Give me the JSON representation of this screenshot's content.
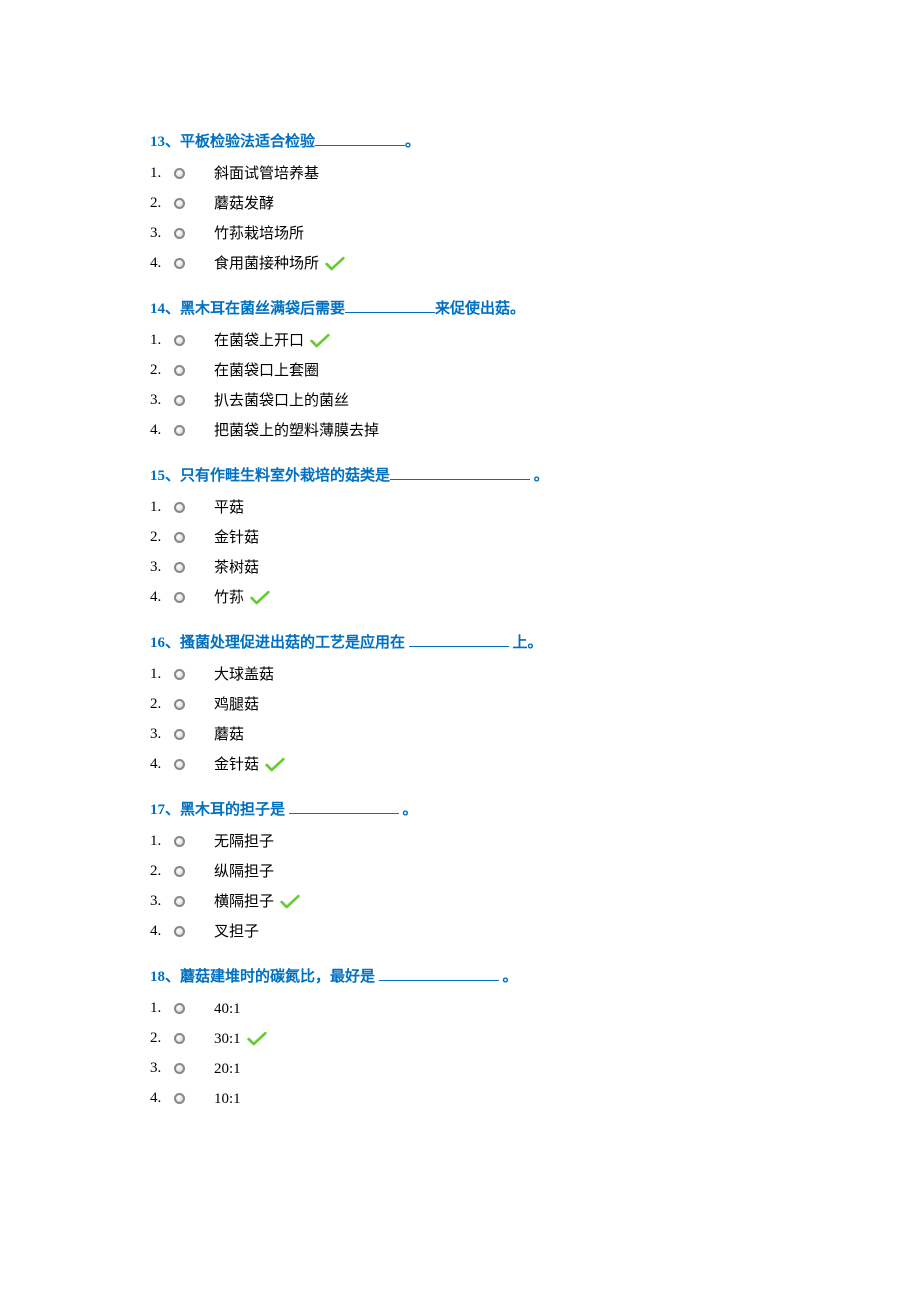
{
  "colors": {
    "title_color": "#0070c0",
    "check_color": "#66cc33",
    "text_color": "#000000"
  },
  "questions": [
    {
      "number": "13",
      "title_prefix": "13、平板检验法适合检验",
      "title_suffix": "。",
      "blank_width": 90,
      "options": [
        {
          "num": "1.",
          "text": "斜面试管培养基",
          "correct": false
        },
        {
          "num": "2.",
          "text": "蘑菇发酵",
          "correct": false
        },
        {
          "num": "3.",
          "text": "竹荪栽培场所",
          "correct": false
        },
        {
          "num": "4.",
          "text": "食用菌接种场所",
          "correct": true
        }
      ]
    },
    {
      "number": "14",
      "title_prefix": "14、黑木耳在菌丝满袋后需要",
      "title_suffix": "来促使出菇。",
      "blank_width": 90,
      "options": [
        {
          "num": "1.",
          "text": "在菌袋上开口",
          "correct": true
        },
        {
          "num": "2.",
          "text": "在菌袋口上套圈",
          "correct": false
        },
        {
          "num": "3.",
          "text": "扒去菌袋口上的菌丝",
          "correct": false
        },
        {
          "num": "4.",
          "text": "把菌袋上的塑料薄膜去掉",
          "correct": false
        }
      ]
    },
    {
      "number": "15",
      "title_prefix": "15、只有作畦生料室外栽培的菇类是",
      "title_suffix": "  。",
      "blank_width": 140,
      "options": [
        {
          "num": "1.",
          "text": "平菇",
          "correct": false
        },
        {
          "num": "2.",
          "text": "金针菇",
          "correct": false
        },
        {
          "num": "3.",
          "text": "茶树菇",
          "correct": false
        },
        {
          "num": "4.",
          "text": "竹荪",
          "correct": true
        }
      ]
    },
    {
      "number": "16",
      "title_prefix": "16、搔菌处理促进出菇的工艺是应用在  ",
      "title_suffix": "  上。",
      "blank_width": 100,
      "options": [
        {
          "num": "1.",
          "text": "大球盖菇",
          "correct": false
        },
        {
          "num": "2.",
          "text": "鸡腿菇",
          "correct": false
        },
        {
          "num": "3.",
          "text": "蘑菇",
          "correct": false
        },
        {
          "num": "4.",
          "text": "金针菇",
          "correct": true
        }
      ]
    },
    {
      "number": "17",
      "title_prefix": "17、黑木耳的担子是    ",
      "title_suffix": "     。",
      "blank_width": 110,
      "options": [
        {
          "num": "1.",
          "text": "无隔担子",
          "correct": false
        },
        {
          "num": "2.",
          "text": "纵隔担子",
          "correct": false
        },
        {
          "num": "3.",
          "text": "横隔担子",
          "correct": true
        },
        {
          "num": "4.",
          "text": "叉担子",
          "correct": false
        }
      ]
    },
    {
      "number": "18",
      "title_prefix": "18、蘑菇建堆时的碳氮比，最好是  ",
      "title_suffix": "      。",
      "blank_width": 120,
      "options": [
        {
          "num": "1.",
          "text": "40:1",
          "correct": false
        },
        {
          "num": "2.",
          "text": "30:1",
          "correct": true
        },
        {
          "num": "3.",
          "text": "20:1",
          "correct": false
        },
        {
          "num": "4.",
          "text": "10:1",
          "correct": false
        }
      ]
    }
  ]
}
